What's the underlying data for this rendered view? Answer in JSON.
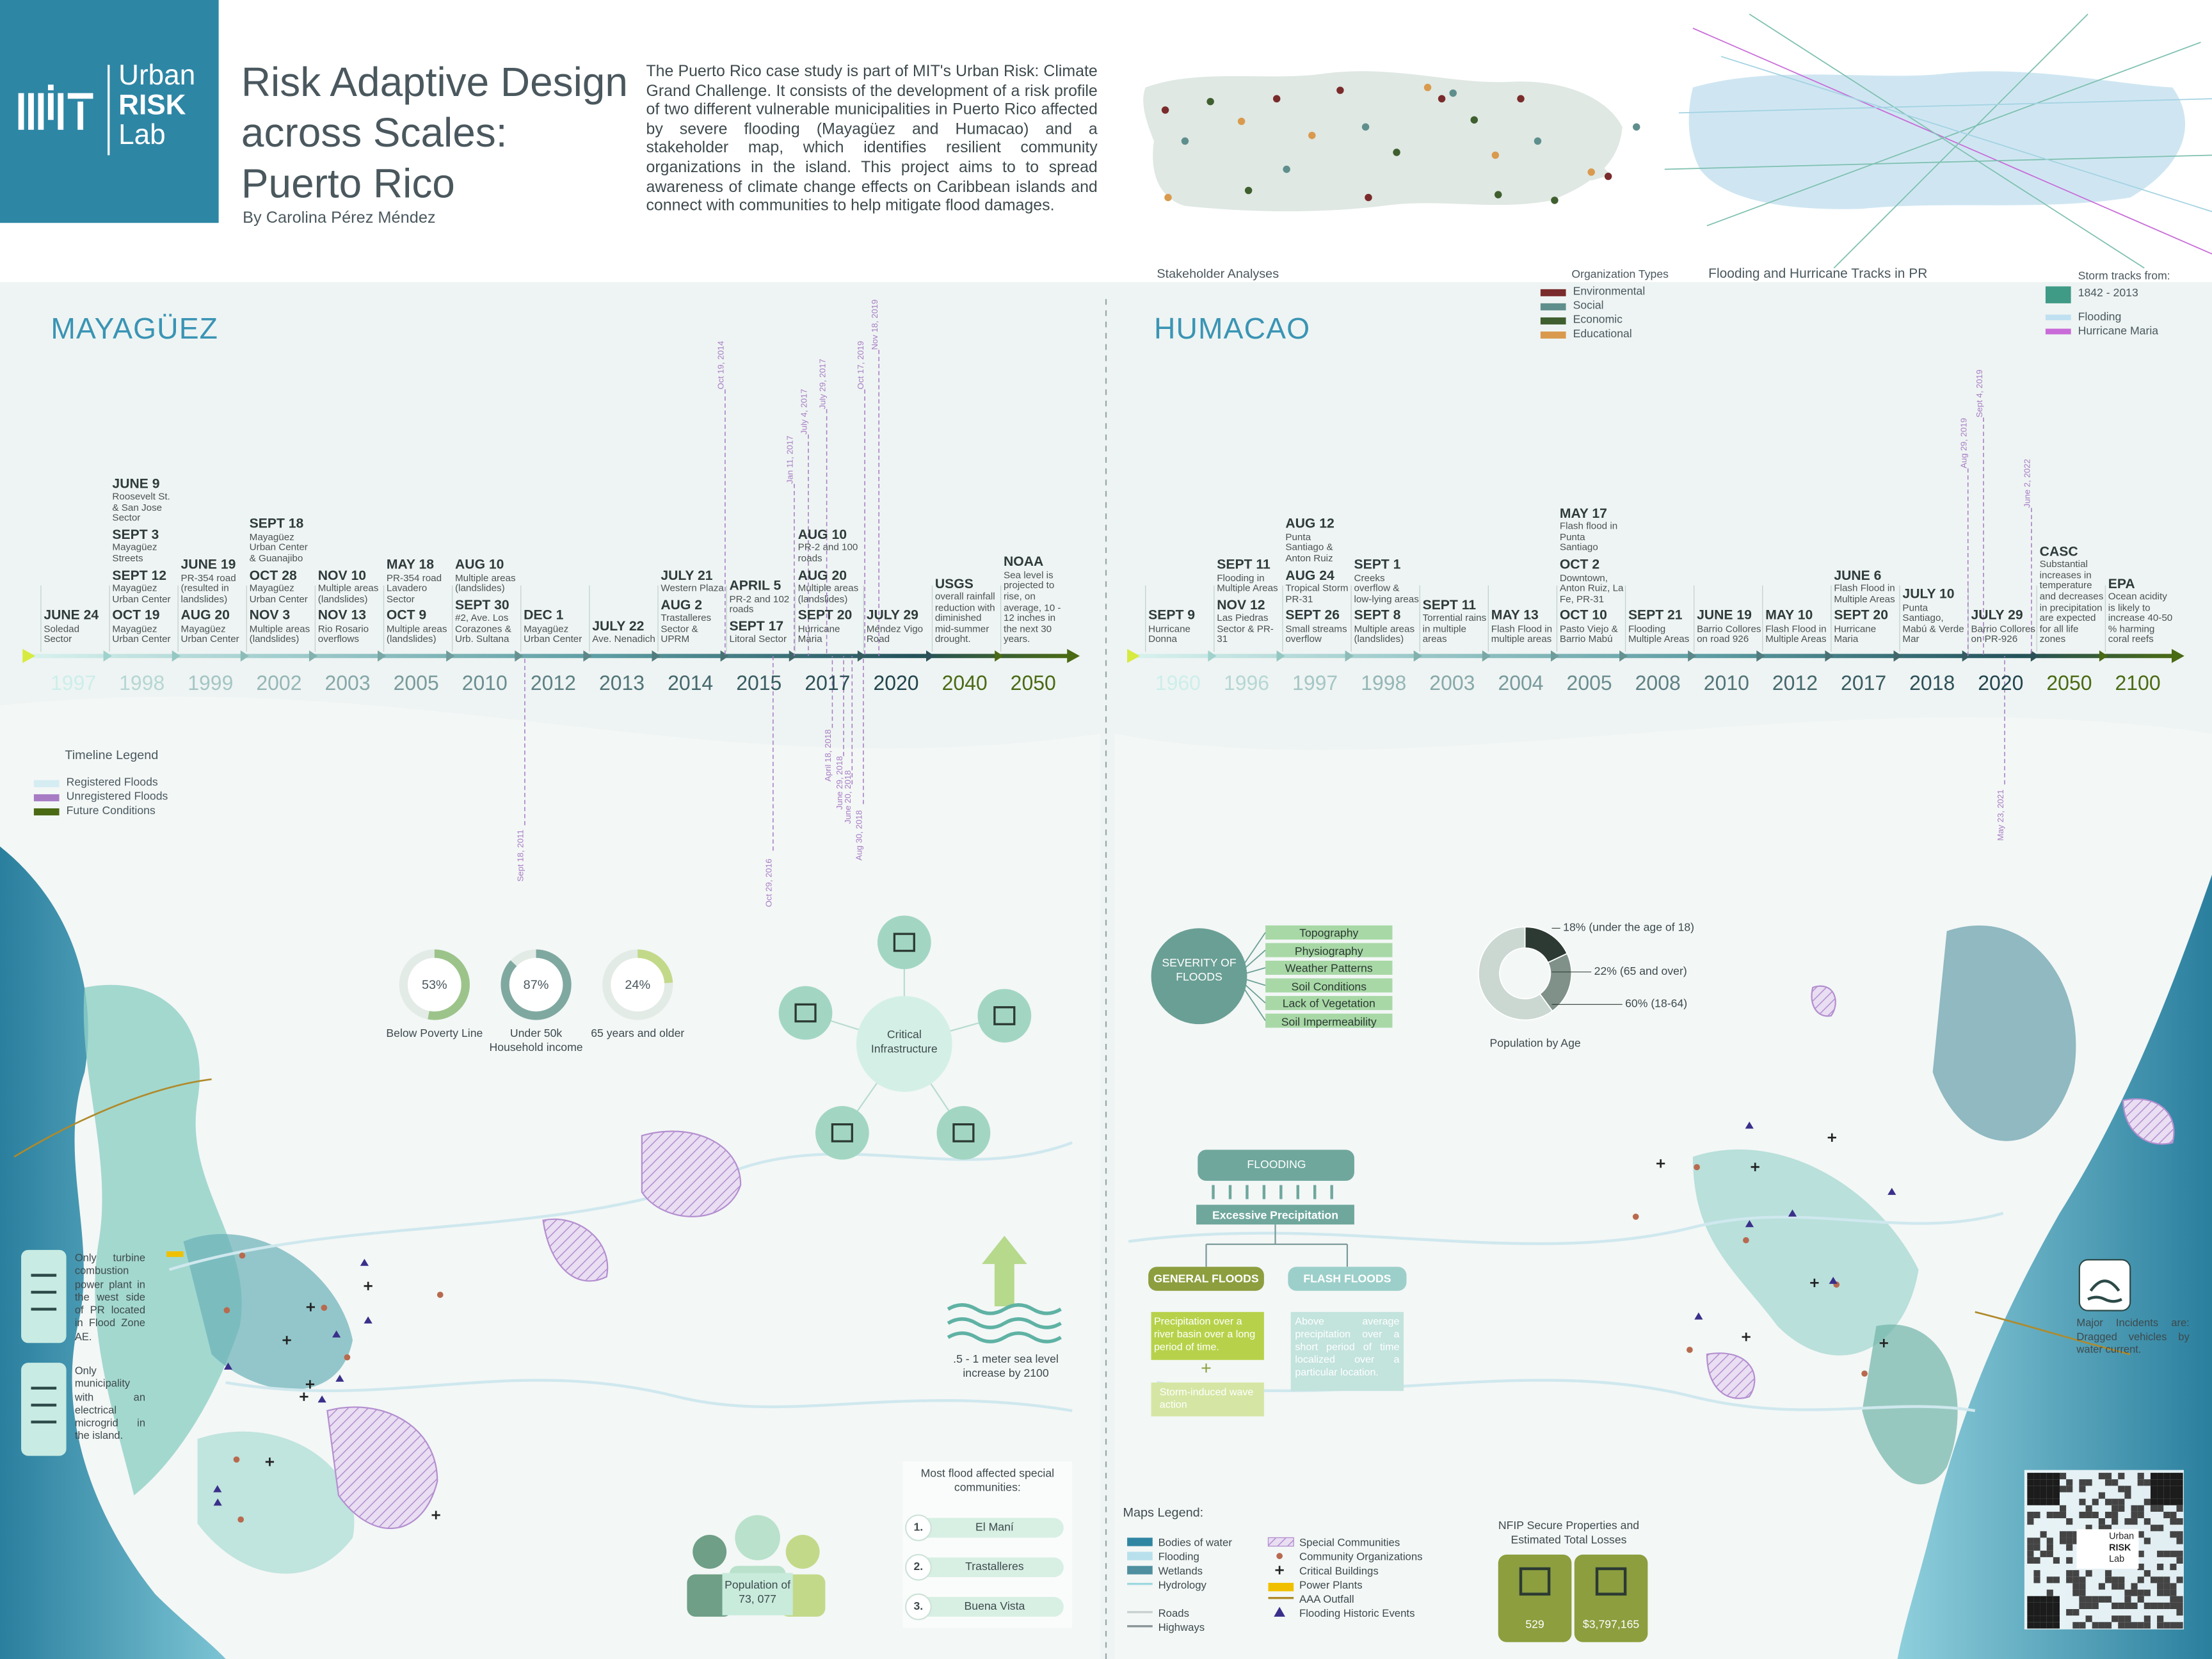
{
  "header": {
    "logo": [
      "Urban",
      "RISK",
      "Lab"
    ],
    "title": [
      "Risk Adaptive Design",
      "across Scales:",
      "Puerto Rico"
    ],
    "author": "By Carolina Pérez Méndez",
    "intro": "The Puerto Rico case study is part of MIT's Urban Risk: Climate Grand Challenge. It consists of the development of a risk profile of two different vulnerable municipalities in Puerto Rico affected by severe flooding (Mayagüez and Humacao) and a stakeholder map, which identifies resilient community organizations in the island. This project aims to to spread awareness of climate change effects on Caribbean islands and connect with communities to help mitigate flood damages."
  },
  "top_maps": {
    "stakeholder_title": "Stakeholder Analyses",
    "org_types_title": "Organization Types",
    "org_types": [
      {
        "name": "Environmental",
        "color": "#7a2b2b"
      },
      {
        "name": "Social",
        "color": "#5f8f8c"
      },
      {
        "name": "Economic",
        "color": "#3f5f2f"
      },
      {
        "name": "Educational",
        "color": "#d99a4e"
      }
    ],
    "tracks_title": "Flooding and Hurricane Tracks in PR",
    "storm_title": "Storm tracks from:",
    "storm_items": [
      {
        "name": "1842 - 2013",
        "color": "#3f9a86"
      },
      {
        "name": "Flooding",
        "color": "#bfe0f0"
      },
      {
        "name": "Hurricane Maria",
        "color": "#c86bd8"
      }
    ]
  },
  "mayaguez": {
    "title": "MAYAGÜEZ",
    "timeline": [
      {
        "year": "1997",
        "events": [
          {
            "date": "JUNE 24",
            "text": "Soledad Sector"
          }
        ]
      },
      {
        "year": "1998",
        "events": [
          {
            "date": "JUNE 9",
            "text": "Roosevelt St. & San Jose Sector"
          },
          {
            "date": "SEPT 3",
            "text": "Mayagüez Streets"
          },
          {
            "date": "SEPT 12",
            "text": "Mayagüez Urban Center"
          },
          {
            "date": "OCT 19",
            "text": "Mayagüez Urban Center"
          }
        ]
      },
      {
        "year": "1999",
        "events": [
          {
            "date": "JUNE 19",
            "text": "PR-354 road (resulted in landslides)"
          },
          {
            "date": "AUG 20",
            "text": "Mayagüez Urban Center"
          }
        ]
      },
      {
        "year": "2002",
        "events": [
          {
            "date": "SEPT 18",
            "text": "Mayagüez Urban Center & Guanajibo"
          },
          {
            "date": "OCT 28",
            "text": "Mayagüez Urban Center"
          },
          {
            "date": "NOV 3",
            "text": "Multiple areas (landslides)"
          }
        ]
      },
      {
        "year": "2003",
        "events": [
          {
            "date": "NOV 10",
            "text": "Multiple areas (landslides)"
          },
          {
            "date": "NOV 13",
            "text": "Rio Rosario overflows"
          }
        ]
      },
      {
        "year": "2005",
        "events": [
          {
            "date": "MAY 18",
            "text": "PR-354 road Lavadero Sector"
          },
          {
            "date": "OCT 9",
            "text": "Multiple areas (landslides)"
          }
        ]
      },
      {
        "year": "2010",
        "events": [
          {
            "date": "AUG 10",
            "text": "Multiple areas (landslides)"
          },
          {
            "date": "SEPT 30",
            "text": "#2, Ave. Los Corazones & Urb. Sultana"
          }
        ]
      },
      {
        "year": "2012",
        "events": [
          {
            "date": "DEC 1",
            "text": "Mayagüez Urban Center"
          }
        ]
      },
      {
        "year": "2013",
        "events": [
          {
            "date": "JULY 22",
            "text": "Ave. Nenadich"
          }
        ]
      },
      {
        "year": "2014",
        "events": [
          {
            "date": "JULY 21",
            "text": "Western Plaza"
          },
          {
            "date": "AUG 2",
            "text": "Trastalleres Sector & UPRM"
          }
        ]
      },
      {
        "year": "2015",
        "events": [
          {
            "date": "APRIL 5",
            "text": "PR-2 and 102 roads"
          },
          {
            "date": "SEPT 17",
            "text": "Litoral Sector"
          }
        ]
      },
      {
        "year": "2017",
        "events": [
          {
            "date": "AUG 10",
            "text": "PR-2 and 100 roads"
          },
          {
            "date": "AUG 20",
            "text": "Multiple areas (landslides)"
          },
          {
            "date": "SEPT 20",
            "text": "Hurricane Maria"
          }
        ]
      },
      {
        "year": "2020",
        "events": [
          {
            "date": "JULY 29",
            "text": "Méndez Vigo Road"
          }
        ]
      },
      {
        "year": "2040",
        "events": [
          {
            "date": "USGS",
            "text": "overall rainfall reduction with diminished mid-summer drought."
          }
        ]
      },
      {
        "year": "2050",
        "events": [
          {
            "date": "NOAA",
            "text": "Sea level is projected to rise, on average, 10 - 12 inches in the next 30 years."
          }
        ]
      }
    ],
    "unregistered": [
      "Oct 19, 2014",
      "Jan 11, 2017",
      "July 4, 2017",
      "July 29, 2017",
      "Oct 17, 2019",
      "Nov 18, 2019",
      "Sept 18, 2011",
      "Oct 29, 2016",
      "April 18, 2018",
      "June 29, 2018",
      "June 20, 2018",
      "Aug 30, 2018"
    ]
  },
  "humacao": {
    "title": "HUMACAO",
    "timeline": [
      {
        "year": "1960",
        "events": [
          {
            "date": "SEPT 9",
            "text": "Hurricane Donna"
          }
        ]
      },
      {
        "year": "1996",
        "events": [
          {
            "date": "SEPT 11",
            "text": "Flooding in Multiple Areas"
          },
          {
            "date": "NOV 12",
            "text": "Las Piedras Sector & PR-31"
          }
        ]
      },
      {
        "year": "1997",
        "events": [
          {
            "date": "AUG 12",
            "text": "Punta Santiago & Anton Ruiz"
          },
          {
            "date": "AUG 24",
            "text": "Tropical Storm PR-31"
          },
          {
            "date": "SEPT 26",
            "text": "Small streams overflow"
          }
        ]
      },
      {
        "year": "1998",
        "events": [
          {
            "date": "SEPT 1",
            "text": "Creeks overflow & low-lying areas"
          },
          {
            "date": "SEPT 8",
            "text": "Multiple areas (landslides)"
          }
        ]
      },
      {
        "year": "2003",
        "events": [
          {
            "date": "SEPT 11",
            "text": "Torrential rains in multiple areas"
          }
        ]
      },
      {
        "year": "2004",
        "events": [
          {
            "date": "MAY 13",
            "text": "Flash Flood in multiple areas"
          }
        ]
      },
      {
        "year": "2005",
        "events": [
          {
            "date": "MAY 17",
            "text": "Flash flood in Punta Santiago"
          },
          {
            "date": "OCT 2",
            "text": "Downtown, Anton Ruiz, La Fe, PR-31"
          },
          {
            "date": "OCT 10",
            "text": "Pasto Viejo & Barrio Mabú"
          }
        ]
      },
      {
        "year": "2008",
        "events": [
          {
            "date": "SEPT 21",
            "text": "Flooding Multiple Areas"
          }
        ]
      },
      {
        "year": "2010",
        "events": [
          {
            "date": "JUNE 19",
            "text": "Barrio Collores on road 926"
          }
        ]
      },
      {
        "year": "2012",
        "events": [
          {
            "date": "MAY 10",
            "text": "Flash Flood in Multiple Areas"
          }
        ]
      },
      {
        "year": "2017",
        "events": [
          {
            "date": "JUNE 6",
            "text": "Flash Flood in Multiple Areas"
          },
          {
            "date": "SEPT 20",
            "text": "Hurricane Maria"
          }
        ]
      },
      {
        "year": "2018",
        "events": [
          {
            "date": "JULY 10",
            "text": "Punta Santiago, Mabú & Verde Mar"
          }
        ]
      },
      {
        "year": "2020",
        "events": [
          {
            "date": "JULY 29",
            "text": "Barrio Collores on PR-926"
          }
        ]
      },
      {
        "year": "2050",
        "events": [
          {
            "date": "CASC",
            "text": "Substantial increases in temperature and decreases in precipitation are expected for all life zones"
          }
        ]
      },
      {
        "year": "2100",
        "events": [
          {
            "date": "EPA",
            "text": "Ocean acidity is likely to increase 40-50 % harming coral reefs"
          }
        ]
      }
    ],
    "unregistered": [
      "Aug 29, 2019",
      "Sept 4, 2019",
      "June 2, 2022",
      "May 23, 2021"
    ]
  },
  "timeline_legend": {
    "title": "Timeline Legend",
    "items": [
      {
        "name": "Registered Floods",
        "color": "#d4ecf2"
      },
      {
        "name": "Unregistered Floods",
        "color": "#a77cc4"
      },
      {
        "name": "Future Conditions",
        "color": "#4a6a14"
      }
    ]
  },
  "stats": {
    "values": [
      53,
      87,
      24
    ],
    "value_labels": [
      "53%",
      "87%",
      "24%"
    ],
    "labels": [
      "Below Poverty Line",
      "Under 50k Household income",
      "65 years and older"
    ],
    "colors": [
      "#9cc48a",
      "#7fa8a0",
      "#c3d98a"
    ]
  },
  "infrastructure": {
    "title": "Critical Infrastructure"
  },
  "notes": {
    "power_plant": "Only turbine combustion power plant in the west side of PR located in Flood Zone AE.",
    "microgrid": "Only municipality with an electrical microgrid in the island.",
    "sea_level": ".5 - 1 meter sea level increase by 2100",
    "population": "Population of 73, 077",
    "incidents": "Major Incidents are: Dragged vehicles by water current."
  },
  "communities": {
    "title": "Most flood affected special communities:",
    "items": [
      {
        "rank": "1.",
        "name": "El Maní"
      },
      {
        "rank": "2.",
        "name": "Trastalleres"
      },
      {
        "rank": "3.",
        "name": "Buena Vista"
      }
    ]
  },
  "severity": {
    "title": "SEVERITY OF FLOODS",
    "factors": [
      "Topography",
      "Physiography",
      "Weather Patterns",
      "Soil Conditions",
      "Lack of Vegetation",
      "Soil Impermeability"
    ]
  },
  "age": {
    "title": "Population by Age",
    "values": [
      18,
      22,
      60
    ],
    "value_labels": [
      "18% (under the age of 18)",
      "22% (65 and over)",
      "60% (18-64)"
    ],
    "colors": [
      "#2c3a33",
      "#7f9189",
      "#cbd8d1"
    ]
  },
  "flooding": {
    "title": "FLOODING",
    "cause": "Excessive Precipitation",
    "general": "GENERAL FLOODS",
    "flash": "FLASH FLOODS",
    "general_text": "Precipitation over a river basin over a long period of time.",
    "plus": "+",
    "wave_text": "Storm-induced wave action",
    "flash_text": "Above average precipitation over a short period of time localized over a particular location."
  },
  "maps_legend": {
    "title": "Maps Legend:",
    "items": [
      {
        "name": "Bodies of water",
        "color": "#2f86a3"
      },
      {
        "name": "Flooding",
        "color": "#b8e0ec"
      },
      {
        "name": "Wetlands",
        "color": "#4f8f9f"
      },
      {
        "name": "Hydrology",
        "color": "#9fd8e0"
      },
      {
        "name": "Roads",
        "color": "#c8d0d0"
      },
      {
        "name": "Highways",
        "color": "#8a9496"
      },
      {
        "name": "Special Communities",
        "color": "#b48fd0"
      },
      {
        "name": "Community Organizations",
        "color": "#b86a4e"
      },
      {
        "name": "Critical Buildings",
        "color": "#222222"
      },
      {
        "name": "Power Plants",
        "color": "#f0c000"
      },
      {
        "name": "AAA Outfall",
        "color": "#b08a2a"
      },
      {
        "name": "Flooding Historic Events",
        "color": "#3a2f8a"
      }
    ]
  },
  "nfip": {
    "title": "NFIP Secure Properties and Estimated Total Losses",
    "properties": 529,
    "losses": "$3,797,165"
  }
}
